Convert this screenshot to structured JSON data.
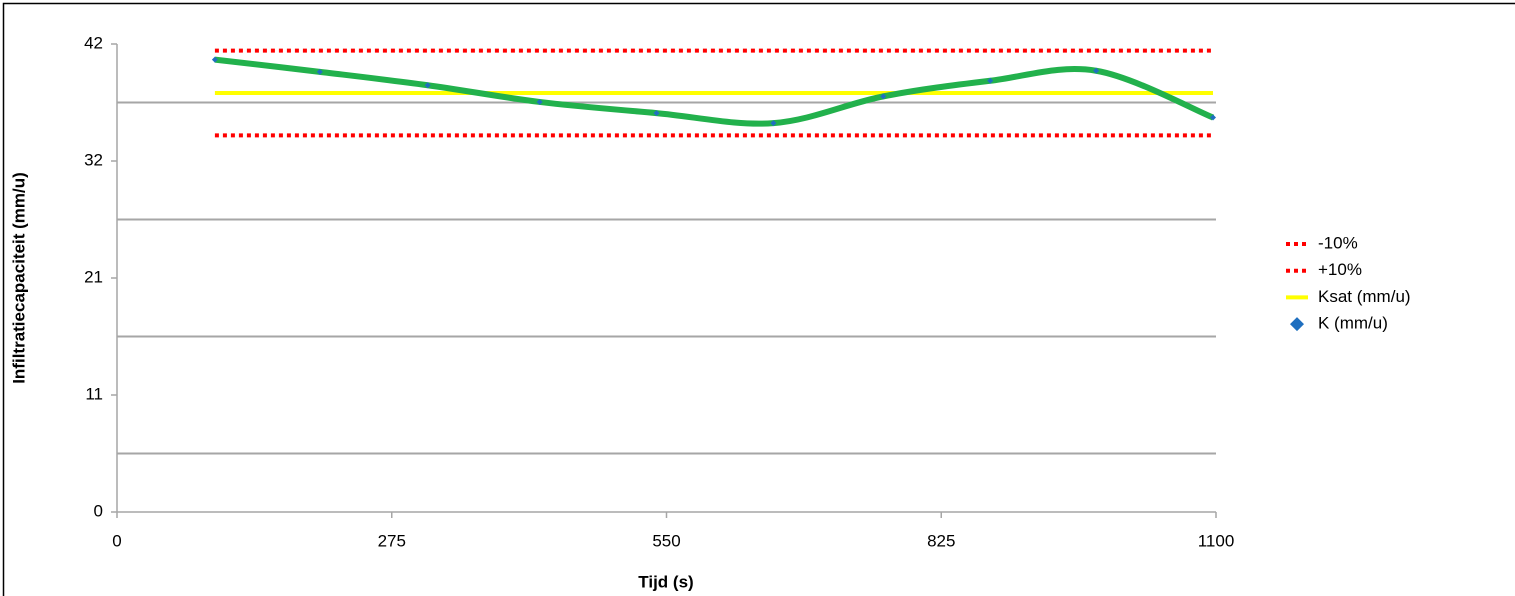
{
  "chart_data": {
    "type": "line",
    "x_label": "Tijd (s)",
    "y_label": "Infiltratiecapaciteit (mm/u)",
    "xlim": [
      0,
      1100
    ],
    "xticks": [
      0,
      275,
      550,
      825,
      1100
    ],
    "ylim": [
      0,
      42
    ],
    "yticks": [
      0,
      {
        "value": 10.5,
        "label": "11"
      },
      21,
      {
        "value": 31.5,
        "label": "32"
      },
      42
    ],
    "grid_lines": [
      5.25,
      15.75,
      26.25,
      36.75
    ],
    "grid": true,
    "legend": "right",
    "series": [
      {
        "name": "-10%",
        "color": "#ff0000",
        "style": "dotted",
        "x": [
          98,
          1097
        ],
        "values": [
          33.8,
          33.8
        ]
      },
      {
        "name": "+10%",
        "color": "#ff0000",
        "style": "dotted",
        "x": [
          98,
          1097
        ],
        "values": [
          41.4,
          41.4
        ]
      },
      {
        "name": "Ksat (mm/u)",
        "color": "#ffff00",
        "style": "solid",
        "x": [
          98,
          1097
        ],
        "values": [
          37.6,
          37.6
        ]
      },
      {
        "name": "K (mm/u)",
        "color": "#1f6fbf",
        "line_color": "#22b14c",
        "style": "smooth",
        "marker": "diamond",
        "x": [
          98,
          203,
          311,
          423,
          540,
          657,
          767,
          874,
          980,
          1097
        ],
        "values": [
          40.6,
          39.5,
          38.3,
          36.8,
          35.8,
          34.9,
          37.3,
          38.7,
          39.6,
          35.4
        ]
      }
    ]
  }
}
